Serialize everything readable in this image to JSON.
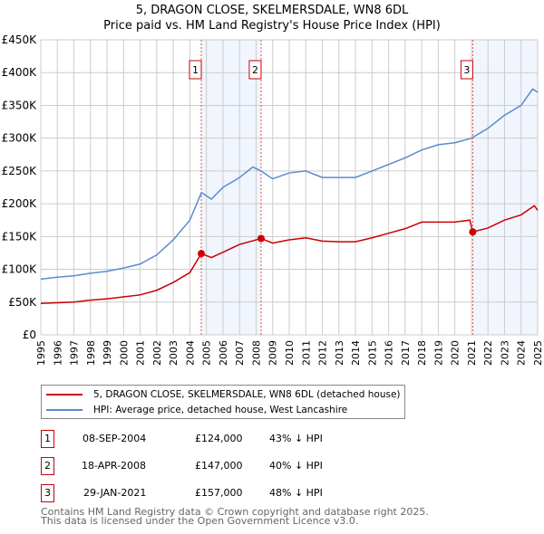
{
  "chart_data": {
    "type": "line",
    "title": "5, DRAGON CLOSE, SKELMERSDALE, WN8 6DL",
    "subtitle": "Price paid vs. HM Land Registry's House Price Index (HPI)",
    "xlabel": "",
    "ylabel": "",
    "xlim": [
      1995,
      2025
    ],
    "ylim": [
      0,
      450000
    ],
    "yticks": [
      0,
      50000,
      100000,
      150000,
      200000,
      250000,
      300000,
      350000,
      400000,
      450000
    ],
    "ytick_labels": [
      "£0",
      "£50K",
      "£100K",
      "£150K",
      "£200K",
      "£250K",
      "£300K",
      "£350K",
      "£400K",
      "£450K"
    ],
    "xtick_labels": [
      "1995",
      "1996",
      "1997",
      "1998",
      "1999",
      "2000",
      "2001",
      "2002",
      "2003",
      "2004",
      "2005",
      "2006",
      "2007",
      "2008",
      "2009",
      "2010",
      "2011",
      "2012",
      "2013",
      "2014",
      "2015",
      "2016",
      "2017",
      "2018",
      "2019",
      "2020",
      "2021",
      "2022",
      "2023",
      "2024",
      "2025"
    ],
    "grid": true,
    "series": [
      {
        "name": "5, DRAGON CLOSE, SKELMERSDALE, WN8 6DL (detached house)",
        "color": "#cc0000",
        "x": [
          1995,
          1996,
          1997,
          1998,
          1999,
          2000,
          2001,
          2002,
          2003,
          2004,
          2004.69,
          2005.3,
          2006,
          2007,
          2008.3,
          2009,
          2010,
          2011,
          2012,
          2013,
          2014,
          2015,
          2016,
          2017,
          2018,
          2019,
          2020,
          2020.9,
          2021.08,
          2022,
          2023,
          2024,
          2024.8,
          2025
        ],
        "y": [
          48000,
          49000,
          50000,
          53000,
          55000,
          58000,
          61000,
          68000,
          80000,
          95000,
          124000,
          118000,
          126000,
          138000,
          147000,
          140000,
          145000,
          148000,
          143000,
          142000,
          142000,
          148000,
          155000,
          162000,
          172000,
          172000,
          172000,
          175000,
          157000,
          163000,
          175000,
          183000,
          197000,
          190000
        ]
      },
      {
        "name": "HPI: Average price, detached house, West Lancashire",
        "color": "#5b8bd0",
        "x": [
          1995,
          1996,
          1997,
          1998,
          1999,
          2000,
          2001,
          2002,
          2003,
          2004,
          2004.7,
          2005.3,
          2006,
          2007,
          2007.8,
          2008.3,
          2009,
          2010,
          2011,
          2012,
          2013,
          2014,
          2015,
          2016,
          2017,
          2018,
          2019,
          2020,
          2021,
          2022,
          2023,
          2024,
          2024.7,
          2025
        ],
        "y": [
          85000,
          88000,
          90000,
          94000,
          97000,
          102000,
          108000,
          122000,
          145000,
          175000,
          217000,
          207000,
          225000,
          240000,
          256000,
          250000,
          238000,
          247000,
          250000,
          240000,
          240000,
          240000,
          250000,
          260000,
          270000,
          282000,
          290000,
          293000,
          300000,
          315000,
          335000,
          350000,
          375000,
          370000
        ]
      }
    ],
    "sales": [
      {
        "label": "1",
        "x": 2004.69,
        "y": 124000,
        "date": "08-SEP-2004",
        "price": "£124,000",
        "hpi": "43% ↓ HPI"
      },
      {
        "label": "2",
        "x": 2008.3,
        "y": 147000,
        "date": "18-APR-2008",
        "price": "£147,000",
        "hpi": "40% ↓ HPI"
      },
      {
        "label": "3",
        "x": 2021.08,
        "y": 157000,
        "date": "29-JAN-2021",
        "price": "£157,000",
        "hpi": "48% ↓ HPI"
      }
    ],
    "legend_position": "below"
  },
  "footer": [
    "Contains HM Land Registry data © Crown copyright and database right 2025.",
    "This data is licensed under the Open Government Licence v3.0."
  ]
}
